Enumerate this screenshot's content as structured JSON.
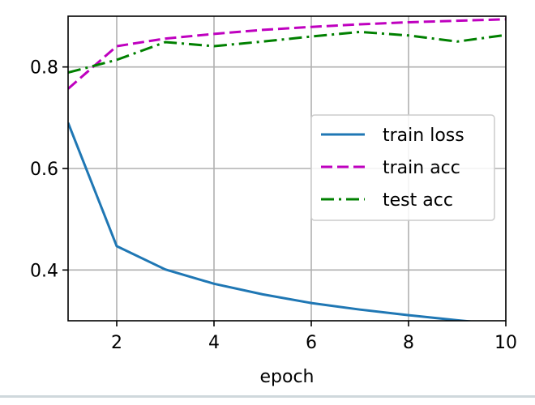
{
  "chart_data": {
    "type": "line",
    "title": "",
    "xlabel": "epoch",
    "ylabel": "",
    "xlim": [
      1,
      10
    ],
    "ylim": [
      0.3,
      0.9
    ],
    "grid": true,
    "legend_position": "center-right",
    "x_ticks": [
      2,
      4,
      6,
      8,
      10
    ],
    "x_tick_labels": [
      "2",
      "4",
      "6",
      "8",
      "10"
    ],
    "y_ticks": [
      0.4,
      0.6,
      0.8
    ],
    "y_tick_labels": [
      "0.4",
      "0.6",
      "0.8"
    ],
    "x": [
      1,
      2,
      3,
      4,
      5,
      6,
      7,
      8,
      9,
      10
    ],
    "series": [
      {
        "name": "train loss",
        "color": "#1f77b4",
        "style": "solid",
        "values": [
          0.69,
          0.447,
          0.401,
          0.373,
          0.352,
          0.335,
          0.322,
          0.311,
          0.301,
          0.292
        ]
      },
      {
        "name": "train acc",
        "color": "#bf00bf",
        "style": "dashed",
        "values": [
          0.757,
          0.841,
          0.856,
          0.865,
          0.873,
          0.879,
          0.884,
          0.888,
          0.891,
          0.894
        ]
      },
      {
        "name": "test acc",
        "color": "#008000",
        "style": "dashdot",
        "values": [
          0.789,
          0.814,
          0.849,
          0.841,
          0.85,
          0.86,
          0.869,
          0.862,
          0.85,
          0.863
        ]
      }
    ]
  }
}
